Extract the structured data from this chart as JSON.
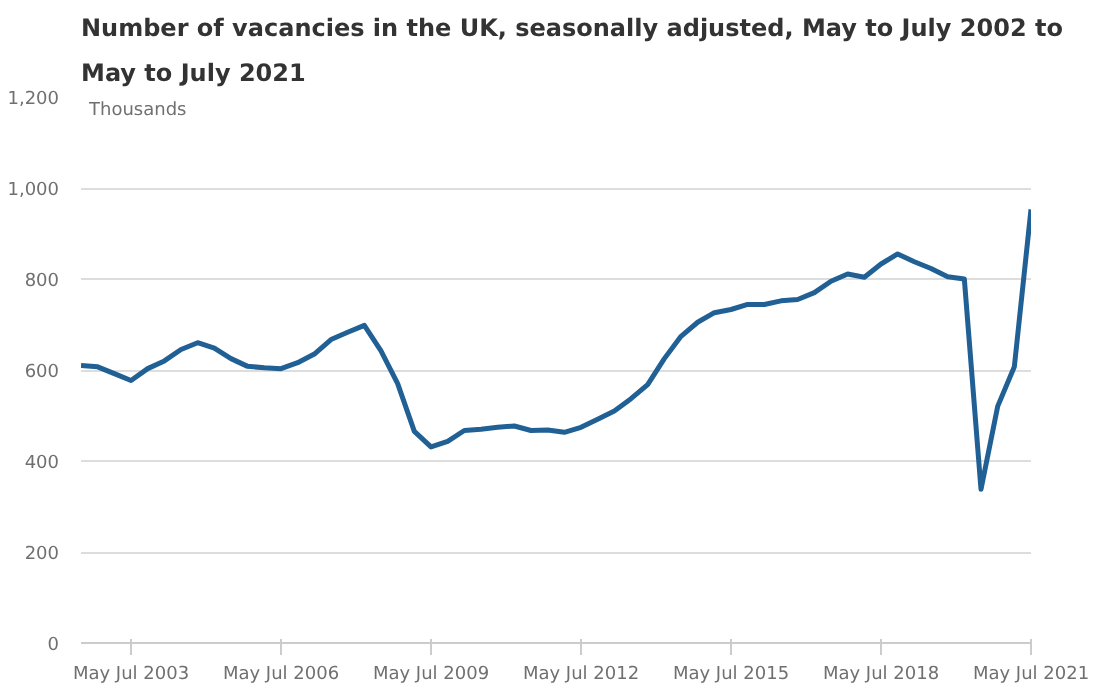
{
  "chart_data": {
    "type": "line",
    "title": "Number of vacancies in the UK, seasonally adjusted, May to July 2002 to May to July 2021",
    "ylabel": "Thousands",
    "categories": [
      null,
      null,
      null,
      "May Jul 2003",
      null,
      null,
      null,
      null,
      null,
      null,
      null,
      null,
      "May Jul 2006",
      null,
      null,
      null,
      null,
      null,
      null,
      null,
      null,
      "May Jul 2009",
      null,
      null,
      null,
      null,
      null,
      null,
      null,
      null,
      "May Jul 2012",
      null,
      null,
      null,
      null,
      null,
      null,
      null,
      null,
      "May Jul 2015",
      null,
      null,
      null,
      null,
      null,
      null,
      null,
      null,
      "May Jul 2018",
      null,
      null,
      null,
      null,
      null,
      null,
      null,
      null,
      "May Jul 2021"
    ],
    "series": [
      {
        "color": "#206095",
        "values": [
          610,
          607,
          592,
          577,
          603,
          620,
          645,
          660,
          648,
          625,
          608,
          605,
          603,
          616,
          635,
          667,
          683,
          698,
          642,
          570,
          465,
          431,
          443,
          467,
          470,
          474,
          477,
          467,
          468,
          463,
          474,
          492,
          510,
          537,
          568,
          625,
          674,
          705,
          726,
          733,
          744,
          744,
          752,
          755,
          770,
          795,
          811,
          804,
          833,
          855,
          838,
          823,
          805,
          800,
          338,
          520,
          607,
          953
        ]
      }
    ],
    "ylim": [
      0,
      1200
    ],
    "yticks": [
      0,
      200,
      400,
      600,
      800,
      {
        "value": 1000,
        "label": "1,000"
      },
      {
        "value": 1200,
        "label": "1,200"
      }
    ],
    "grid": "y",
    "marker": "none",
    "line_style": "solid"
  }
}
